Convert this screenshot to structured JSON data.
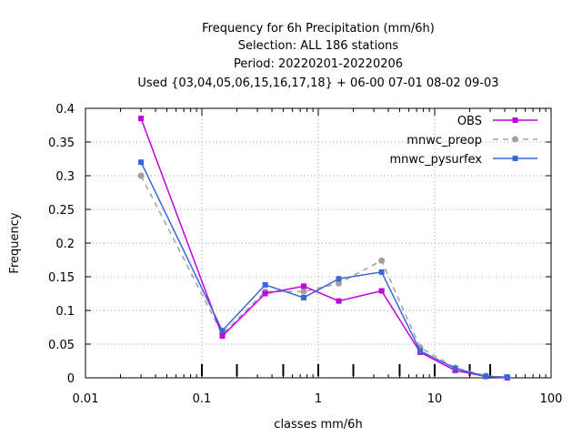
{
  "chart_data": {
    "type": "line",
    "title_lines": [
      "Frequency  for 6h Precipitation (mm/6h)",
      "Selection: ALL    186 stations",
      "Period: 20220201-20220206",
      "Used {03,04,05,06,15,16,17,18} + 06-00 07-01 08-02 09-03"
    ],
    "xlabel": "classes mm/6h",
    "ylabel": "Frequency",
    "x_scale": "log",
    "xlim": [
      0.01,
      100
    ],
    "ylim": [
      0,
      0.4
    ],
    "x_ticks": [
      0.01,
      0.1,
      1,
      10,
      100
    ],
    "x_tick_labels": [
      "0.01",
      "0.1",
      "1",
      "10",
      "100"
    ],
    "y_ticks": [
      0,
      0.05,
      0.1,
      0.15,
      0.2,
      0.25,
      0.3,
      0.35,
      0.4
    ],
    "y_tick_labels": [
      "0",
      "0.05",
      "0.1",
      "0.15",
      "0.2",
      "0.25",
      "0.3",
      "0.35",
      "0.4"
    ],
    "class_markers": [
      0.1,
      0.2,
      0.5,
      1,
      2,
      5,
      10,
      20,
      30
    ],
    "grid": true,
    "legend_position": "top-right",
    "series": [
      {
        "name": "OBS",
        "color": "#c000e0",
        "dashed": false,
        "marker": "square",
        "x": [
          0.03,
          0.15,
          0.35,
          0.75,
          1.5,
          3.5,
          7.5,
          15,
          27.5,
          42
        ],
        "y": [
          0.385,
          0.062,
          0.125,
          0.136,
          0.114,
          0.129,
          0.038,
          0.011,
          0.002,
          0.0
        ]
      },
      {
        "name": "mnwc_preop",
        "color": "#a0a0a0",
        "dashed": true,
        "marker": "circle",
        "x": [
          0.03,
          0.15,
          0.35,
          0.75,
          1.5,
          3.5,
          7.5,
          15,
          27.5,
          42
        ],
        "y": [
          0.3,
          0.065,
          0.128,
          0.128,
          0.14,
          0.174,
          0.045,
          0.015,
          0.003,
          0.001
        ]
      },
      {
        "name": "mnwc_pysurfex",
        "color": "#3a66d8",
        "dashed": false,
        "marker": "square",
        "x": [
          0.03,
          0.15,
          0.35,
          0.75,
          1.5,
          3.5,
          7.5,
          15,
          27.5,
          42
        ],
        "y": [
          0.32,
          0.07,
          0.138,
          0.119,
          0.147,
          0.157,
          0.04,
          0.014,
          0.002,
          0.001
        ]
      }
    ]
  }
}
